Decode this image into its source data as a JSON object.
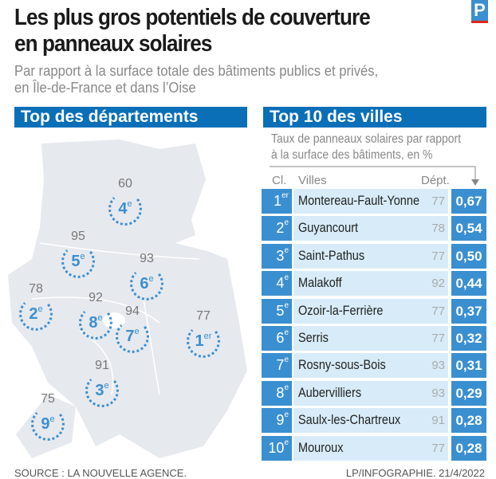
{
  "header": {
    "title_line1": "Les plus gros potentiels de couverture",
    "title_line2": "en panneaux solaires",
    "subtitle_line1": "Par rapport à la surface totale des bâtiments publics et privés,",
    "subtitle_line2": "en Île-de-France et dans l’Oise",
    "logo": "P"
  },
  "left": {
    "heading": "Top des départements"
  },
  "right": {
    "heading": "Top 10 des villes",
    "note_line1": "Taux de panneaux solaires par rapport",
    "note_line2": "à la surface des bâtiments, en %",
    "col_rank": "Cl.",
    "col_city": "Villes",
    "col_dept": "Dépt."
  },
  "footer": {
    "source": "SOURCE : LA NOUVELLE AGENCE.",
    "credit": "LP/INFOGRAPHIE. 21/4/2022"
  },
  "colors": {
    "header_blue": "#0b6fb8",
    "accent_blue": "#3a8fd0",
    "row_light": "#d7ecf8",
    "map_gray": "#e6e9ee"
  },
  "chart_data": {
    "type": "table",
    "departements": [
      {
        "dept": "77",
        "rank": "1",
        "suffix": "er"
      },
      {
        "dept": "78",
        "rank": "2",
        "suffix": "e"
      },
      {
        "dept": "91",
        "rank": "3",
        "suffix": "e"
      },
      {
        "dept": "60",
        "rank": "4",
        "suffix": "e"
      },
      {
        "dept": "95",
        "rank": "5",
        "suffix": "e"
      },
      {
        "dept": "93",
        "rank": "6",
        "suffix": "e"
      },
      {
        "dept": "94",
        "rank": "7",
        "suffix": "e"
      },
      {
        "dept": "92",
        "rank": "8",
        "suffix": "e"
      },
      {
        "dept": "75",
        "rank": "9",
        "suffix": "e"
      }
    ],
    "villes": [
      {
        "rank": "1",
        "suffix": "er",
        "city": "Montereau-Fault-Yonne",
        "dept": "77",
        "value": "0,67"
      },
      {
        "rank": "2",
        "suffix": "e",
        "city": "Guyancourt",
        "dept": "78",
        "value": "0,54"
      },
      {
        "rank": "3",
        "suffix": "e",
        "city": "Saint-Pathus",
        "dept": "77",
        "value": "0,50"
      },
      {
        "rank": "4",
        "suffix": "e",
        "city": "Malakoff",
        "dept": "92",
        "value": "0,44"
      },
      {
        "rank": "5",
        "suffix": "e",
        "city": "Ozoir-la-Ferrière",
        "dept": "77",
        "value": "0,37"
      },
      {
        "rank": "6",
        "suffix": "e",
        "city": "Serris",
        "dept": "77",
        "value": "0,32"
      },
      {
        "rank": "7",
        "suffix": "e",
        "city": "Rosny-sous-Bois",
        "dept": "93",
        "value": "0,31"
      },
      {
        "rank": "8",
        "suffix": "e",
        "city": "Aubervilliers",
        "dept": "93",
        "value": "0,29"
      },
      {
        "rank": "9",
        "suffix": "e",
        "city": "Saulx-les-Chartreux",
        "dept": "91",
        "value": "0,28"
      },
      {
        "rank": "10",
        "suffix": "e",
        "city": "Mouroux",
        "dept": "77",
        "value": "0,28"
      }
    ]
  }
}
